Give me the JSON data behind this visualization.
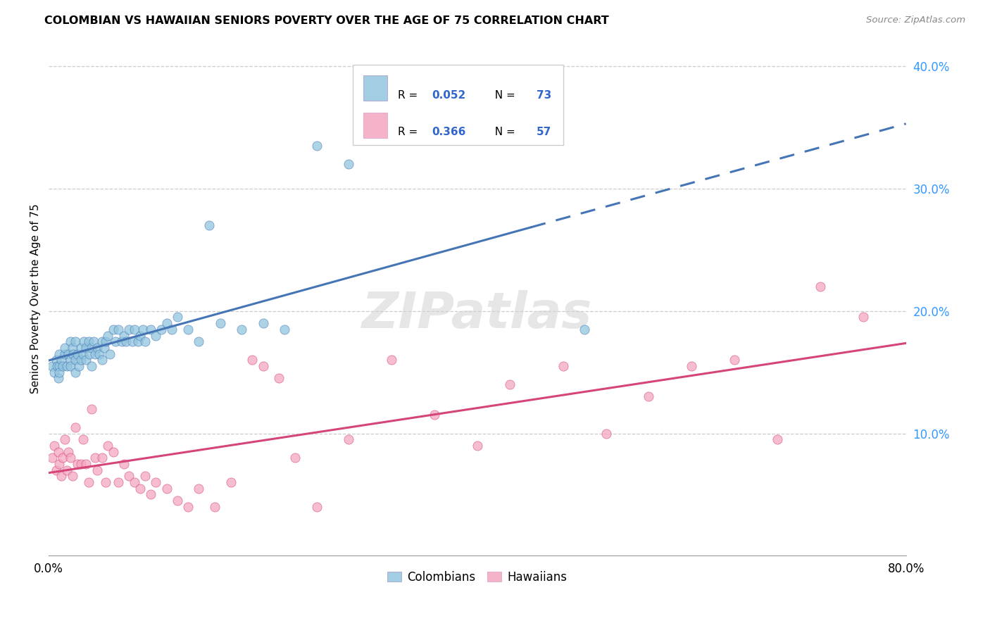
{
  "title": "COLOMBIAN VS HAWAIIAN SENIORS POVERTY OVER THE AGE OF 75 CORRELATION CHART",
  "source": "Source: ZipAtlas.com",
  "ylabel": "Seniors Poverty Over the Age of 75",
  "xlim": [
    0.0,
    0.8
  ],
  "ylim": [
    0.0,
    0.42
  ],
  "xticks": [
    0.0,
    0.1,
    0.2,
    0.3,
    0.4,
    0.5,
    0.6,
    0.7,
    0.8
  ],
  "xticklabels": [
    "0.0%",
    "",
    "",
    "",
    "",
    "",
    "",
    "",
    "80.0%"
  ],
  "yticks_right": [
    0.1,
    0.2,
    0.3,
    0.4
  ],
  "ytick_right_labels": [
    "10.0%",
    "20.0%",
    "30.0%",
    "40.0%"
  ],
  "colombian_R": 0.052,
  "colombian_N": 73,
  "hawaiian_R": 0.366,
  "hawaiian_N": 57,
  "colombian_color": "#92c5de",
  "hawaiian_color": "#f4a6c0",
  "trendline_colombian_color": "#4575b4",
  "trendline_hawaiian_color": "#d6457a",
  "legend_text_color": "#3366cc",
  "watermark": "ZIPatlas",
  "colombian_x": [
    0.003,
    0.005,
    0.007,
    0.008,
    0.009,
    0.01,
    0.01,
    0.01,
    0.012,
    0.013,
    0.015,
    0.015,
    0.017,
    0.018,
    0.02,
    0.02,
    0.02,
    0.022,
    0.023,
    0.025,
    0.025,
    0.025,
    0.027,
    0.028,
    0.03,
    0.03,
    0.032,
    0.033,
    0.035,
    0.035,
    0.037,
    0.038,
    0.04,
    0.04,
    0.042,
    0.043,
    0.045,
    0.047,
    0.05,
    0.05,
    0.052,
    0.053,
    0.055,
    0.057,
    0.06,
    0.062,
    0.065,
    0.068,
    0.07,
    0.072,
    0.075,
    0.078,
    0.08,
    0.083,
    0.085,
    0.088,
    0.09,
    0.095,
    0.1,
    0.105,
    0.11,
    0.115,
    0.12,
    0.13,
    0.14,
    0.15,
    0.16,
    0.18,
    0.2,
    0.22,
    0.25,
    0.28,
    0.5
  ],
  "colombian_y": [
    0.155,
    0.15,
    0.16,
    0.155,
    0.145,
    0.155,
    0.165,
    0.15,
    0.16,
    0.155,
    0.165,
    0.17,
    0.155,
    0.165,
    0.175,
    0.16,
    0.155,
    0.17,
    0.165,
    0.175,
    0.16,
    0.15,
    0.165,
    0.155,
    0.17,
    0.16,
    0.165,
    0.175,
    0.16,
    0.17,
    0.175,
    0.165,
    0.17,
    0.155,
    0.175,
    0.165,
    0.17,
    0.165,
    0.175,
    0.16,
    0.17,
    0.175,
    0.18,
    0.165,
    0.185,
    0.175,
    0.185,
    0.175,
    0.18,
    0.175,
    0.185,
    0.175,
    0.185,
    0.175,
    0.18,
    0.185,
    0.175,
    0.185,
    0.18,
    0.185,
    0.19,
    0.185,
    0.195,
    0.185,
    0.175,
    0.27,
    0.19,
    0.185,
    0.19,
    0.185,
    0.335,
    0.32,
    0.185
  ],
  "hawaiian_x": [
    0.003,
    0.005,
    0.007,
    0.009,
    0.01,
    0.012,
    0.013,
    0.015,
    0.017,
    0.018,
    0.02,
    0.022,
    0.025,
    0.027,
    0.03,
    0.032,
    0.035,
    0.037,
    0.04,
    0.043,
    0.045,
    0.05,
    0.053,
    0.055,
    0.06,
    0.065,
    0.07,
    0.075,
    0.08,
    0.085,
    0.09,
    0.095,
    0.1,
    0.11,
    0.12,
    0.13,
    0.14,
    0.155,
    0.17,
    0.19,
    0.2,
    0.215,
    0.23,
    0.25,
    0.28,
    0.32,
    0.36,
    0.4,
    0.43,
    0.48,
    0.52,
    0.56,
    0.6,
    0.64,
    0.68,
    0.72,
    0.76
  ],
  "hawaiian_y": [
    0.08,
    0.09,
    0.07,
    0.085,
    0.075,
    0.065,
    0.08,
    0.095,
    0.07,
    0.085,
    0.08,
    0.065,
    0.105,
    0.075,
    0.075,
    0.095,
    0.075,
    0.06,
    0.12,
    0.08,
    0.07,
    0.08,
    0.06,
    0.09,
    0.085,
    0.06,
    0.075,
    0.065,
    0.06,
    0.055,
    0.065,
    0.05,
    0.06,
    0.055,
    0.045,
    0.04,
    0.055,
    0.04,
    0.06,
    0.16,
    0.155,
    0.145,
    0.08,
    0.04,
    0.095,
    0.16,
    0.115,
    0.09,
    0.14,
    0.155,
    0.1,
    0.13,
    0.155,
    0.16,
    0.095,
    0.22,
    0.195
  ]
}
